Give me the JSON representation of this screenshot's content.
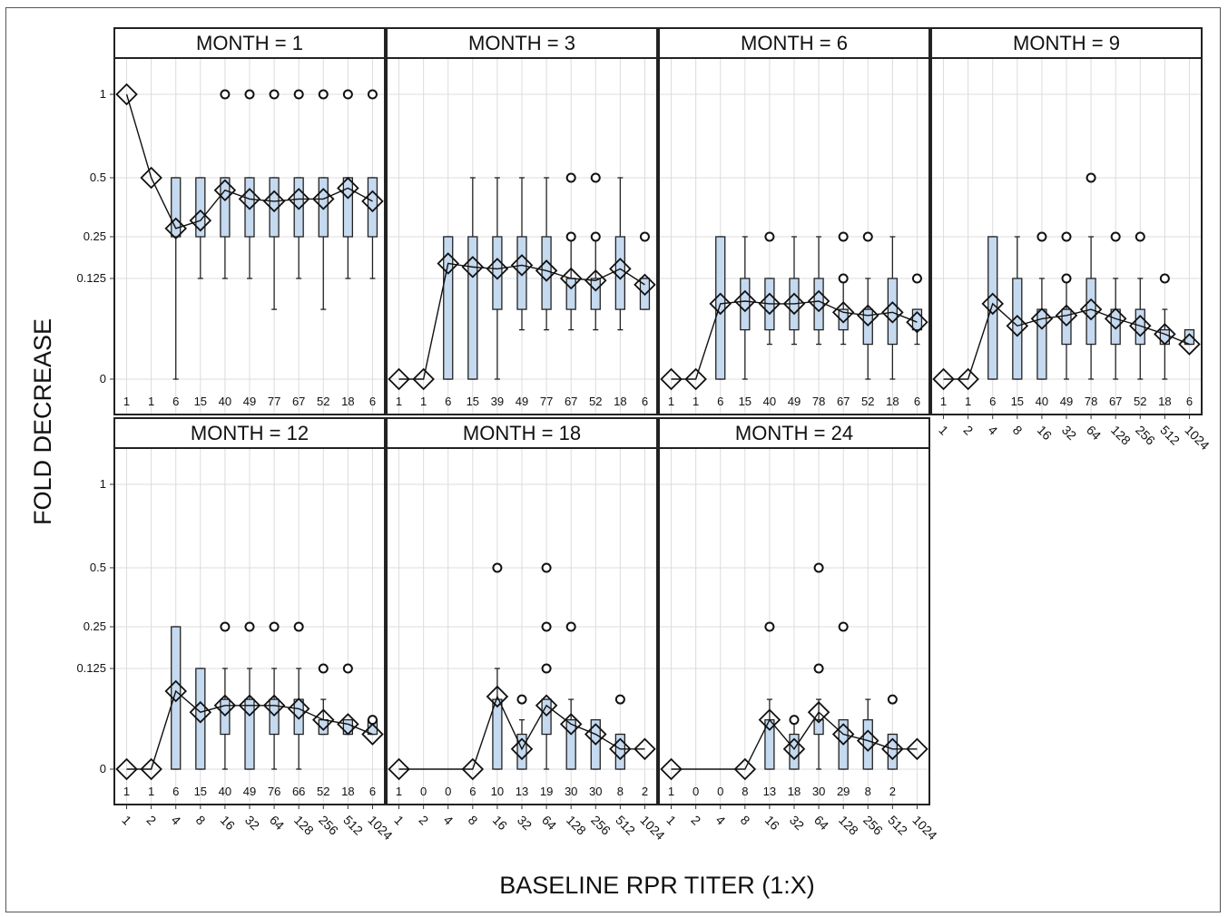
{
  "figure": {
    "ylabel": "FOLD DECREASE",
    "xlabel": "BASELINE RPR TITER (1:X)",
    "colors": {
      "box_fill": "#c5d9ef",
      "box_stroke": "#222222",
      "grid": "#dcdcdc",
      "panel_border": "#222222"
    }
  },
  "chart_data": {
    "type": "box",
    "yticks": [
      {
        "value": 0,
        "label": "0"
      },
      {
        "value": 0.125,
        "label": "0.125"
      },
      {
        "value": 0.25,
        "label": "0.25"
      },
      {
        "value": 0.5,
        "label": "0.5"
      },
      {
        "value": 1,
        "label": "1"
      }
    ],
    "categories": [
      "1",
      "2",
      "4",
      "8",
      "16",
      "32",
      "64",
      "128",
      "256",
      "512",
      "1024"
    ],
    "panels": [
      {
        "title": "MONTH = 1",
        "counts": [
          "1",
          "1",
          "6",
          "15",
          "40",
          "49",
          "77",
          "67",
          "52",
          "18",
          "6"
        ],
        "means": [
          1,
          0.5,
          0.28,
          0.31,
          0.44,
          0.4,
          0.39,
          0.4,
          0.4,
          0.45,
          0.39
        ],
        "boxes": [
          null,
          null,
          {
            "q1": 0.25,
            "q3": 0.5,
            "lo": 0,
            "hi": 0.5
          },
          {
            "q1": 0.25,
            "q3": 0.5,
            "lo": 0.125,
            "hi": 0.5
          },
          {
            "q1": 0.25,
            "q3": 0.5,
            "lo": 0.125,
            "hi": 0.5
          },
          {
            "q1": 0.25,
            "q3": 0.5,
            "lo": 0.125,
            "hi": 0.5
          },
          {
            "q1": 0.25,
            "q3": 0.5,
            "lo": 0.06,
            "hi": 0.5
          },
          {
            "q1": 0.25,
            "q3": 0.5,
            "lo": 0.125,
            "hi": 0.5
          },
          {
            "q1": 0.25,
            "q3": 0.5,
            "lo": 0.06,
            "hi": 0.5
          },
          {
            "q1": 0.25,
            "q3": 0.5,
            "lo": 0.125,
            "hi": 0.5
          },
          {
            "q1": 0.25,
            "q3": 0.5,
            "lo": 0.125,
            "hi": 0.5
          }
        ],
        "outliers": [
          [],
          [],
          [],
          [],
          [
            1
          ],
          [
            1
          ],
          [
            1
          ],
          [
            1
          ],
          [
            1
          ],
          [
            1
          ],
          [
            1
          ]
        ]
      },
      {
        "title": "MONTH = 3",
        "counts": [
          "1",
          "1",
          "6",
          "15",
          "39",
          "49",
          "77",
          "67",
          "52",
          "18",
          "6"
        ],
        "means": [
          0,
          0,
          0.165,
          0.155,
          0.15,
          0.16,
          0.145,
          0.125,
          0.12,
          0.15,
          0.11
        ],
        "boxes": [
          null,
          null,
          {
            "q1": 0,
            "q3": 0.25,
            "lo": 0,
            "hi": 0.25
          },
          {
            "q1": 0,
            "q3": 0.25,
            "lo": 0,
            "hi": 0.5
          },
          {
            "q1": 0.06,
            "q3": 0.25,
            "lo": 0,
            "hi": 0.5
          },
          {
            "q1": 0.06,
            "q3": 0.25,
            "lo": 0.03,
            "hi": 0.5
          },
          {
            "q1": 0.06,
            "q3": 0.25,
            "lo": 0.03,
            "hi": 0.5
          },
          {
            "q1": 0.06,
            "q3": 0.125,
            "lo": 0.03,
            "hi": 0.25
          },
          {
            "q1": 0.06,
            "q3": 0.125,
            "lo": 0.03,
            "hi": 0.25
          },
          {
            "q1": 0.06,
            "q3": 0.25,
            "lo": 0.03,
            "hi": 0.5
          },
          {
            "q1": 0.06,
            "q3": 0.125,
            "lo": 0.06,
            "hi": 0.125
          }
        ],
        "outliers": [
          [],
          [],
          [],
          [],
          [],
          [],
          [],
          [
            0.25,
            0.5
          ],
          [
            0.25,
            0.5
          ],
          [],
          [
            0.25
          ]
        ]
      },
      {
        "title": "MONTH = 6",
        "counts": [
          "1",
          "1",
          "6",
          "15",
          "40",
          "49",
          "78",
          "67",
          "52",
          "18",
          "6"
        ],
        "means": [
          0,
          0,
          0.07,
          0.075,
          0.07,
          0.07,
          0.075,
          0.055,
          0.05,
          0.055,
          0.04
        ],
        "boxes": [
          null,
          null,
          {
            "q1": 0,
            "q3": 0.25,
            "lo": 0,
            "hi": 0.25
          },
          {
            "q1": 0.03,
            "q3": 0.125,
            "lo": 0,
            "hi": 0.25
          },
          {
            "q1": 0.03,
            "q3": 0.125,
            "lo": 0.015,
            "hi": 0.125
          },
          {
            "q1": 0.03,
            "q3": 0.125,
            "lo": 0.015,
            "hi": 0.25
          },
          {
            "q1": 0.03,
            "q3": 0.125,
            "lo": 0.015,
            "hi": 0.25
          },
          {
            "q1": 0.03,
            "q3": 0.06,
            "lo": 0.015,
            "hi": 0.125
          },
          {
            "q1": 0.015,
            "q3": 0.06,
            "lo": 0,
            "hi": 0.125
          },
          {
            "q1": 0.015,
            "q3": 0.125,
            "lo": 0,
            "hi": 0.25
          },
          {
            "q1": 0.03,
            "q3": 0.06,
            "lo": 0.015,
            "hi": 0.06
          }
        ],
        "outliers": [
          [],
          [],
          [],
          [],
          [
            0.25
          ],
          [],
          [],
          [
            0.125,
            0.25
          ],
          [
            0.25
          ],
          [],
          [
            0.125
          ]
        ]
      },
      {
        "title": "MONTH = 9",
        "counts": [
          "1",
          "1",
          "6",
          "15",
          "40",
          "49",
          "78",
          "67",
          "52",
          "18",
          "6"
        ],
        "means": [
          0,
          0,
          0.07,
          0.035,
          0.045,
          0.05,
          0.06,
          0.045,
          0.035,
          0.025,
          0.015
        ],
        "boxes": [
          null,
          null,
          {
            "q1": 0,
            "q3": 0.25,
            "lo": 0,
            "hi": 0.25
          },
          {
            "q1": 0,
            "q3": 0.125,
            "lo": 0,
            "hi": 0.25
          },
          {
            "q1": 0,
            "q3": 0.06,
            "lo": 0,
            "hi": 0.125
          },
          {
            "q1": 0.015,
            "q3": 0.06,
            "lo": 0,
            "hi": 0.125
          },
          {
            "q1": 0.015,
            "q3": 0.125,
            "lo": 0,
            "hi": 0.25
          },
          {
            "q1": 0.015,
            "q3": 0.06,
            "lo": 0,
            "hi": 0.125
          },
          {
            "q1": 0.015,
            "q3": 0.06,
            "lo": 0,
            "hi": 0.125
          },
          {
            "q1": 0.015,
            "q3": 0.03,
            "lo": 0,
            "hi": 0.06
          },
          {
            "q1": 0.015,
            "q3": 0.03,
            "lo": 0.015,
            "hi": 0.03
          }
        ],
        "outliers": [
          [],
          [],
          [],
          [],
          [
            0.25
          ],
          [
            0.125,
            0.25
          ],
          [
            0.5
          ],
          [
            0.25
          ],
          [
            0.25
          ],
          [
            0.125
          ],
          []
        ]
      },
      {
        "title": "MONTH = 12",
        "counts": [
          "1",
          "1",
          "6",
          "15",
          "40",
          "49",
          "76",
          "66",
          "52",
          "18",
          "6"
        ],
        "means": [
          0,
          0,
          0.075,
          0.04,
          0.05,
          0.05,
          0.05,
          0.045,
          0.03,
          0.025,
          0.015
        ],
        "boxes": [
          null,
          null,
          {
            "q1": 0,
            "q3": 0.25,
            "lo": 0,
            "hi": 0.25
          },
          {
            "q1": 0,
            "q3": 0.125,
            "lo": 0,
            "hi": 0.125
          },
          {
            "q1": 0.015,
            "q3": 0.06,
            "lo": 0,
            "hi": 0.125
          },
          {
            "q1": 0,
            "q3": 0.06,
            "lo": 0,
            "hi": 0.125
          },
          {
            "q1": 0.015,
            "q3": 0.06,
            "lo": 0,
            "hi": 0.125
          },
          {
            "q1": 0.015,
            "q3": 0.06,
            "lo": 0,
            "hi": 0.125
          },
          {
            "q1": 0.015,
            "q3": 0.03,
            "lo": 0.015,
            "hi": 0.06
          },
          {
            "q1": 0.015,
            "q3": 0.03,
            "lo": 0.015,
            "hi": 0.03
          },
          {
            "q1": 0.015,
            "q3": 0.03,
            "lo": 0.015,
            "hi": 0.03
          }
        ],
        "outliers": [
          [],
          [],
          [],
          [],
          [
            0.25
          ],
          [
            0.25
          ],
          [
            0.25
          ],
          [
            0.25
          ],
          [
            0.125
          ],
          [
            0.125
          ],
          [
            0.03
          ]
        ]
      },
      {
        "title": "MONTH = 18",
        "counts": [
          "1",
          "0",
          "0",
          "6",
          "10",
          "13",
          "19",
          "30",
          "30",
          "8",
          "2"
        ],
        "means": [
          0,
          null,
          null,
          0,
          0.065,
          0.005,
          0.05,
          0.025,
          0.015,
          0.005,
          0.005
        ],
        "boxes": [
          null,
          null,
          null,
          null,
          {
            "q1": 0,
            "q3": 0.06,
            "lo": 0,
            "hi": 0.125
          },
          {
            "q1": 0,
            "q3": 0.015,
            "lo": 0,
            "hi": 0.03
          },
          {
            "q1": 0.015,
            "q3": 0.06,
            "lo": 0,
            "hi": 0.06
          },
          {
            "q1": 0,
            "q3": 0.03,
            "lo": 0,
            "hi": 0.06
          },
          {
            "q1": 0,
            "q3": 0.03,
            "lo": 0,
            "hi": 0.03
          },
          {
            "q1": 0,
            "q3": 0.015,
            "lo": 0,
            "hi": 0.015
          },
          null
        ],
        "outliers": [
          [],
          [],
          [],
          [],
          [
            0.5
          ],
          [
            0.06
          ],
          [
            0.125,
            0.25,
            0.5
          ],
          [
            0.25
          ],
          [],
          [
            0.06
          ],
          []
        ]
      },
      {
        "title": "MONTH = 24",
        "counts": [
          "1",
          "0",
          "0",
          "8",
          "13",
          "18",
          "30",
          "29",
          "8",
          "2",
          ""
        ],
        "means": [
          0,
          null,
          null,
          0,
          0.03,
          0.005,
          0.04,
          0.015,
          0.01,
          0.005,
          0.005
        ],
        "boxes": [
          null,
          null,
          null,
          null,
          {
            "q1": 0,
            "q3": 0.03,
            "lo": 0,
            "hi": 0.06
          },
          {
            "q1": 0,
            "q3": 0.015,
            "lo": 0,
            "hi": 0.03
          },
          {
            "q1": 0.015,
            "q3": 0.03,
            "lo": 0,
            "hi": 0.06
          },
          {
            "q1": 0,
            "q3": 0.03,
            "lo": 0,
            "hi": 0.03
          },
          {
            "q1": 0,
            "q3": 0.03,
            "lo": 0,
            "hi": 0.06
          },
          {
            "q1": 0,
            "q3": 0.015,
            "lo": 0,
            "hi": 0.015
          },
          null
        ],
        "outliers": [
          [],
          [],
          [],
          [],
          [
            0.25
          ],
          [
            0.03
          ],
          [
            0.125,
            0.5
          ],
          [
            0.25
          ],
          [],
          [
            0.06
          ],
          []
        ]
      }
    ]
  }
}
